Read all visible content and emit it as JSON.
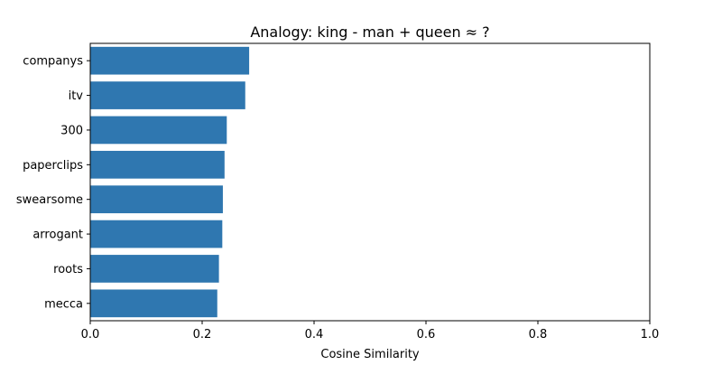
{
  "chart_data": {
    "type": "bar",
    "orientation": "horizontal",
    "title": "Analogy: king - man + queen ≈ ?",
    "xlabel": "Cosine Similarity",
    "ylabel": "",
    "xlim": [
      0,
      1.0
    ],
    "xticks": [
      "0.0",
      "0.2",
      "0.4",
      "0.6",
      "0.8",
      "1.0"
    ],
    "categories": [
      "companys",
      "itv",
      "300",
      "paperclips",
      "swearsome",
      "arrogant",
      "roots",
      "mecca"
    ],
    "values": [
      0.284,
      0.277,
      0.244,
      0.24,
      0.237,
      0.236,
      0.23,
      0.227
    ],
    "bar_color": "#2f77b0",
    "grid": false,
    "legend": "none"
  }
}
